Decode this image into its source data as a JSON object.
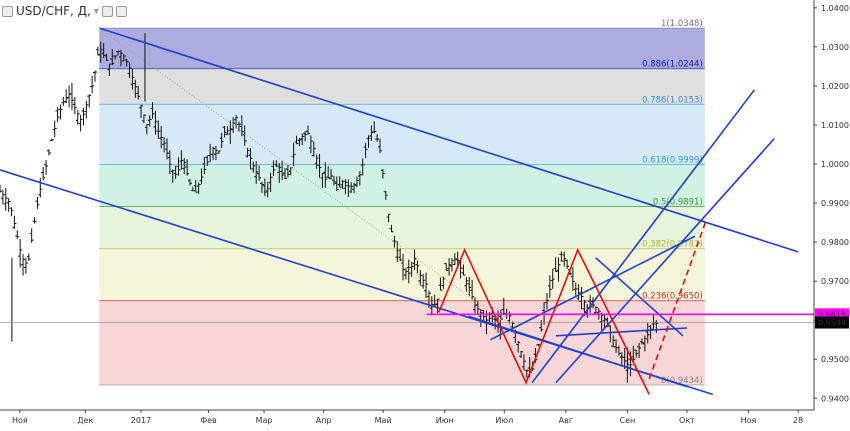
{
  "header": {
    "symbol": "USD/CHF, Д,",
    "menu_glyph": "▾"
  },
  "chart_data": {
    "type": "candlestick",
    "symbol": "USD/CHF",
    "timeframe": "Д",
    "ylim": [
      0.937,
      1.042
    ],
    "y_ticks": [
      "0.9400",
      "0.9500",
      "0.9600",
      "0.9700",
      "0.9800",
      "0.9900",
      "1.0000",
      "1.0100",
      "1.0200",
      "1.0300",
      "1.0400"
    ],
    "x_ticks": [
      "Ноя",
      "Дек",
      "2017",
      "Фев",
      "Мар",
      "Апр",
      "Май",
      "Июн",
      "Июл",
      "Авг",
      "Сен",
      "Окт",
      "Ноя",
      "28"
    ],
    "x_tick_days": [
      0,
      33,
      61,
      95,
      123,
      153,
      183,
      214,
      244,
      275,
      306,
      336,
      367,
      392
    ],
    "x_range_days": [
      -10,
      400
    ],
    "current_price": {
      "value": 0.9594,
      "label": "0.9594"
    },
    "marked_price": {
      "value": 0.9615,
      "label": "0.9615"
    },
    "fibonacci": {
      "start_day": 40,
      "end_day": 345,
      "levels": [
        {
          "ratio": 1,
          "price": 1.0348,
          "label": "1(1.0348)",
          "fill": "#9e9fd8",
          "text": "#6e6e9e"
        },
        {
          "ratio": 0.886,
          "price": 1.0244,
          "label": "0.886(1.0244)",
          "fill": "#d9d9d9",
          "text": "#1a1aa0"
        },
        {
          "ratio": 0.786,
          "price": 1.0153,
          "label": "0.786(1.0153)",
          "fill": "#cfe5f5",
          "text": "#3a8fd0"
        },
        {
          "ratio": 0.618,
          "price": 0.9999,
          "label": "0.618(0.9999)",
          "fill": "#c9efe0",
          "text": "#2a9fd0"
        },
        {
          "ratio": 0.5,
          "price": 0.9891,
          "label": "0.5(0.9891)",
          "fill": "#e4f5d7",
          "text": "#2e9e2e"
        },
        {
          "ratio": 0.382,
          "price": 0.9783,
          "label": "0.382(0.9783)",
          "fill": "#f3f3d2",
          "text": "#b0b030"
        },
        {
          "ratio": 0.236,
          "price": 0.965,
          "label": "0.236(0.9650)",
          "fill": "#f4cfcf",
          "text": "#d03030"
        },
        {
          "ratio": 0,
          "price": 0.9434,
          "label": "0(0.9434)",
          "fill": "#f4cfcf",
          "text": "#888888"
        }
      ]
    },
    "ohlc_anchors": [
      [
        -10,
        0.993
      ],
      [
        -5,
        0.99
      ],
      [
        -2,
        0.983
      ],
      [
        1,
        0.976
      ],
      [
        4,
        0.974
      ],
      [
        7,
        0.984
      ],
      [
        10,
        0.993
      ],
      [
        13,
        0.999
      ],
      [
        16,
        1.006
      ],
      [
        19,
        1.012
      ],
      [
        22,
        1.016
      ],
      [
        25,
        1.018
      ],
      [
        28,
        1.014
      ],
      [
        31,
        1.011
      ],
      [
        34,
        1.016
      ],
      [
        37,
        1.021
      ],
      [
        40,
        1.03
      ],
      [
        43,
        1.027
      ],
      [
        46,
        1.025
      ],
      [
        49,
        1.029
      ],
      [
        52,
        1.028
      ],
      [
        55,
        1.025
      ],
      [
        58,
        1.02
      ],
      [
        61,
        1.015
      ],
      [
        64,
        1.01
      ],
      [
        67,
        1.013
      ],
      [
        70,
        1.008
      ],
      [
        73,
        1.005
      ],
      [
        76,
        0.999
      ],
      [
        79,
        0.997
      ],
      [
        82,
        1.002
      ],
      [
        85,
        0.996
      ],
      [
        88,
        0.992
      ],
      [
        91,
        0.996
      ],
      [
        94,
        1.0
      ],
      [
        97,
        1.004
      ],
      [
        100,
        1.003
      ],
      [
        103,
        1.008
      ],
      [
        106,
        1.009
      ],
      [
        109,
        1.012
      ],
      [
        112,
        1.008
      ],
      [
        115,
        1.003
      ],
      [
        118,
        0.999
      ],
      [
        121,
        0.996
      ],
      [
        124,
        0.992
      ],
      [
        127,
        0.998
      ],
      [
        130,
        1.0
      ],
      [
        133,
        0.996
      ],
      [
        136,
        0.998
      ],
      [
        139,
        1.005
      ],
      [
        142,
        1.007
      ],
      [
        145,
        1.008
      ],
      [
        148,
        1.004
      ],
      [
        151,
        0.999
      ],
      [
        154,
        0.996
      ],
      [
        157,
        0.997
      ],
      [
        160,
        0.993
      ],
      [
        163,
        0.996
      ],
      [
        166,
        0.994
      ],
      [
        169,
        0.995
      ],
      [
        172,
        0.998
      ],
      [
        175,
        1.006
      ],
      [
        178,
        1.009
      ],
      [
        181,
        1.005
      ],
      [
        184,
        0.993
      ],
      [
        187,
        0.983
      ],
      [
        190,
        0.978
      ],
      [
        193,
        0.973
      ],
      [
        196,
        0.972
      ],
      [
        199,
        0.976
      ],
      [
        202,
        0.971
      ],
      [
        205,
        0.969
      ],
      [
        208,
        0.963
      ],
      [
        211,
        0.966
      ],
      [
        214,
        0.972
      ],
      [
        217,
        0.975
      ],
      [
        220,
        0.976
      ],
      [
        223,
        0.972
      ],
      [
        226,
        0.969
      ],
      [
        229,
        0.964
      ],
      [
        232,
        0.962
      ],
      [
        235,
        0.96
      ],
      [
        238,
        0.961
      ],
      [
        241,
        0.959
      ],
      [
        244,
        0.962
      ],
      [
        247,
        0.961
      ],
      [
        250,
        0.956
      ],
      [
        253,
        0.951
      ],
      [
        256,
        0.946
      ],
      [
        259,
        0.948
      ],
      [
        262,
        0.956
      ],
      [
        265,
        0.964
      ],
      [
        268,
        0.97
      ],
      [
        271,
        0.974
      ],
      [
        274,
        0.976
      ],
      [
        277,
        0.972
      ],
      [
        280,
        0.968
      ],
      [
        283,
        0.966
      ],
      [
        286,
        0.963
      ],
      [
        289,
        0.964
      ],
      [
        292,
        0.962
      ],
      [
        295,
        0.96
      ],
      [
        298,
        0.956
      ],
      [
        301,
        0.952
      ],
      [
        304,
        0.95
      ],
      [
        307,
        0.948
      ],
      [
        310,
        0.951
      ],
      [
        313,
        0.954
      ],
      [
        316,
        0.956
      ],
      [
        319,
        0.959
      ],
      [
        322,
        0.9594
      ]
    ],
    "trendlines": [
      {
        "name": "Descending channel upper",
        "color": "#1f3fd0",
        "style": "solid",
        "points": [
          [
            40,
            1.0348
          ],
          [
            392,
            0.9775
          ]
        ]
      },
      {
        "name": "Descending channel lower",
        "color": "#1f3fd0",
        "style": "solid",
        "points": [
          [
            -10,
            0.9985
          ],
          [
            349,
            0.941
          ]
        ]
      },
      {
        "name": "Ascending line A",
        "color": "#1f3fd0",
        "style": "solid",
        "points": [
          [
            258,
            0.944
          ],
          [
            370,
            1.019
          ]
        ]
      },
      {
        "name": "Ascending line B",
        "color": "#1f3fd0",
        "style": "solid",
        "points": [
          [
            270,
            0.944
          ],
          [
            380,
            1.0065
          ]
        ]
      },
      {
        "name": "Ascending line C",
        "color": "#1f3fd0",
        "style": "solid",
        "points": [
          [
            237,
            0.955
          ],
          [
            340,
            0.9815
          ]
        ]
      },
      {
        "name": "Short channel upper",
        "color": "#1f3fd0",
        "style": "solid",
        "points": [
          [
            290,
            0.976
          ],
          [
            334,
            0.956
          ]
        ]
      },
      {
        "name": "Short channel lower",
        "color": "#1f3fd0",
        "style": "solid",
        "points": [
          [
            226,
            0.961
          ],
          [
            336,
            0.943
          ]
        ]
      },
      {
        "name": "Short channel 3",
        "color": "#1f3fd0",
        "style": "solid",
        "points": [
          [
            270,
            0.956
          ],
          [
            336,
            0.958
          ]
        ]
      },
      {
        "name": "Diagonal guide",
        "color": "#999999",
        "style": "dotted",
        "points": [
          [
            40,
            1.0348
          ],
          [
            232,
            0.964
          ]
        ]
      },
      {
        "name": "Pattern zigzag",
        "color": "#e01010",
        "style": "solid",
        "points": [
          [
            211,
            0.962
          ],
          [
            224,
            0.978
          ],
          [
            255,
            0.944
          ],
          [
            281,
            0.978
          ],
          [
            317,
            0.941
          ]
        ]
      },
      {
        "name": "Projection",
        "color": "#e01010",
        "style": "dashed",
        "points": [
          [
            317,
            0.945
          ],
          [
            346,
            0.986
          ]
        ]
      },
      {
        "name": "Horizontal level",
        "color": "#ff00ff",
        "style": "solid",
        "points": [
          [
            205,
            0.9615
          ],
          [
            400,
            0.9615
          ]
        ]
      }
    ]
  }
}
